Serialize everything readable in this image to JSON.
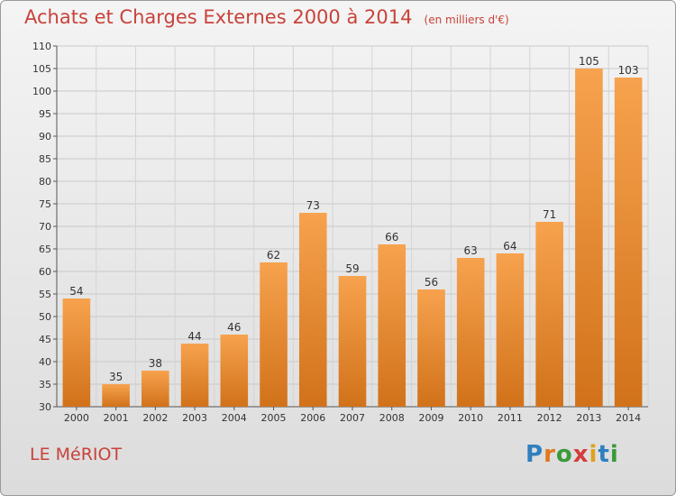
{
  "header": {
    "title": "Achats et Charges Externes 2000 à 2014",
    "unit": "(en milliers d'€)"
  },
  "footer": {
    "place": "LE MéRIOT",
    "logo_letters": [
      "P",
      "r",
      "o",
      "x",
      "i",
      "t",
      "i"
    ]
  },
  "colors": {
    "title": "#c8423a",
    "bar_top": "#f7a24e",
    "bar_bottom": "#d1721a"
  },
  "chart_data": {
    "type": "bar",
    "title": "Achats et Charges Externes 2000 à 2014",
    "subtitle": "(en milliers d'€)",
    "xlabel": "",
    "ylabel": "",
    "categories": [
      "2000",
      "2001",
      "2002",
      "2003",
      "2004",
      "2005",
      "2006",
      "2007",
      "2008",
      "2009",
      "2010",
      "2011",
      "2012",
      "2013",
      "2014"
    ],
    "values": [
      54,
      35,
      38,
      44,
      46,
      62,
      73,
      59,
      66,
      56,
      63,
      64,
      71,
      105,
      103
    ],
    "ylim": [
      30,
      110
    ],
    "yticks": [
      30,
      35,
      40,
      45,
      50,
      55,
      60,
      65,
      70,
      75,
      80,
      85,
      90,
      95,
      100,
      105,
      110
    ],
    "grid": true,
    "legend": "none"
  }
}
